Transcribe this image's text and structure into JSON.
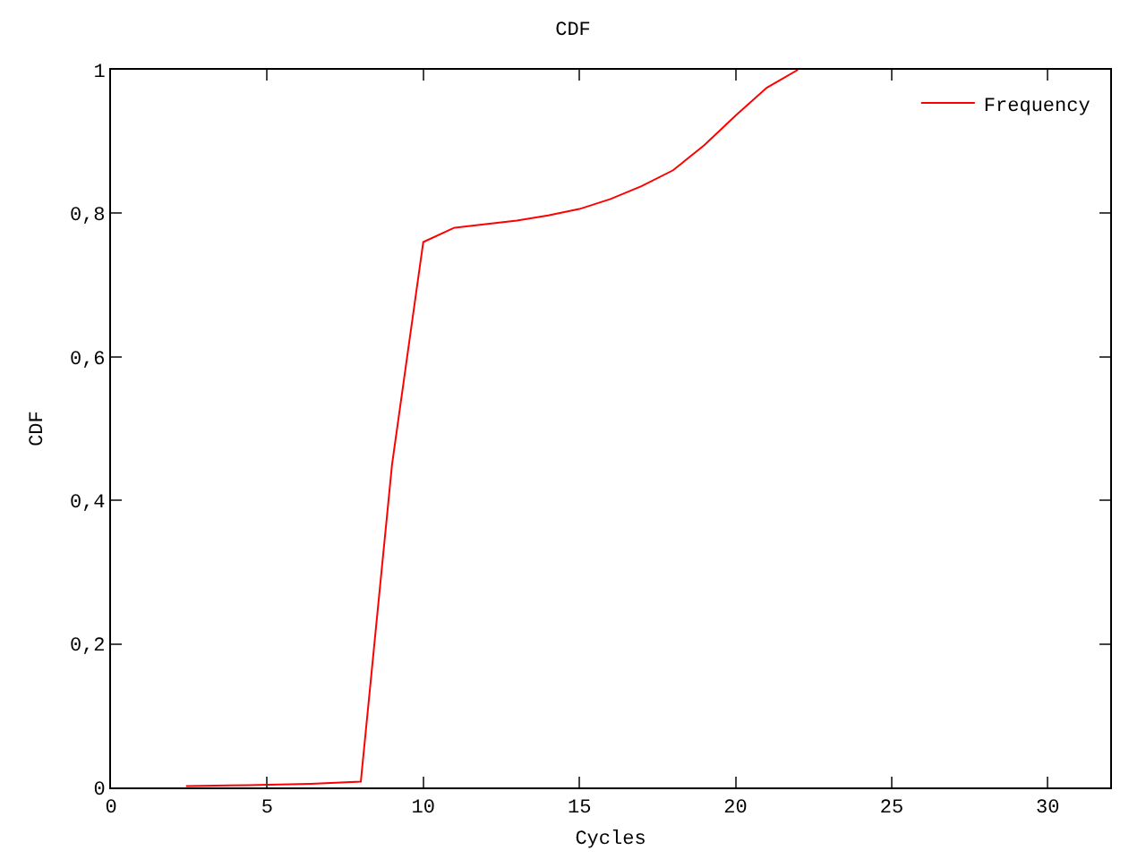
{
  "chart_data": {
    "type": "line",
    "title": "CDF",
    "xlabel": "Cycles",
    "ylabel": "CDF",
    "series": [
      {
        "name": "Frequency",
        "color": "#ff0000",
        "x": [
          2.4,
          4.4,
          6.4,
          8,
          9,
          10,
          11,
          12,
          13,
          14,
          15,
          16,
          17,
          18,
          19,
          20,
          21,
          22
        ],
        "values": [
          0.002,
          0.003,
          0.005,
          0.008,
          0.45,
          0.76,
          0.78,
          0.785,
          0.79,
          0.797,
          0.806,
          0.82,
          0.838,
          0.86,
          0.895,
          0.936,
          0.975,
          1
        ]
      }
    ],
    "xlim": [
      0,
      32
    ],
    "xticks": [
      0,
      5,
      10,
      15,
      20,
      25,
      30
    ],
    "ylim": [
      0,
      1
    ],
    "yticks": [
      0,
      {
        "value": 0.2,
        "label": "0,2"
      },
      {
        "value": 0.4,
        "label": "0,4"
      },
      {
        "value": 0.6,
        "label": "0,6"
      },
      {
        "value": 0.8,
        "label": "0,8"
      },
      1
    ],
    "grid": false,
    "legend": "top right",
    "marker": "none",
    "line_style": "solid"
  }
}
